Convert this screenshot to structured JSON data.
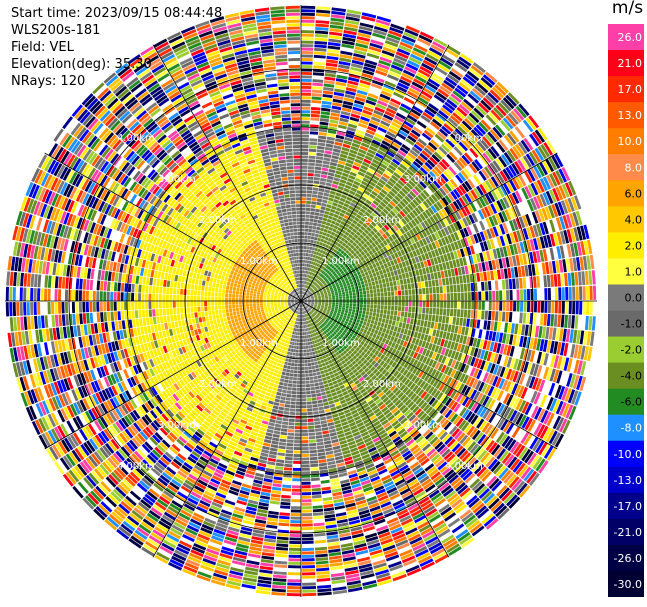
{
  "info": {
    "start_time": "Start time: 2023/09/15 08:44:48",
    "device": "WLS200s-181",
    "field": "Field: VEL",
    "elevation": "Elevation(deg): 35.30",
    "nrays": "NRays: 120"
  },
  "colorbar": {
    "unit": "m/s",
    "levels": [
      "26.0",
      "21.0",
      "17.0",
      "13.0",
      "10.0",
      "8.0",
      "6.0",
      "4.0",
      "2.0",
      "1.0",
      "0.0",
      "-1.0",
      "-2.0",
      "-4.0",
      "-6.0",
      "-8.0",
      "-10.0",
      "-13.0",
      "-17.0",
      "-21.0",
      "-26.0",
      "-30.0"
    ],
    "colors": [
      "#ff3fa8",
      "#ff0018",
      "#ff2a00",
      "#ff5a00",
      "#ff7e00",
      "#ff8a4a",
      "#ffa400",
      "#ffc800",
      "#ffee00",
      "#ffff40",
      "#7a7a7a",
      "#6a6a6a",
      "#9acd32",
      "#6b8e23",
      "#228b22",
      "#1e90ff",
      "#0000ff",
      "#0000cc",
      "#00008b",
      "#000066",
      "#000044",
      "#000033"
    ]
  },
  "chart_data": {
    "type": "heatmap",
    "subtype": "ppi-radial-velocity",
    "unit": "m/s",
    "nrays": 120,
    "range_rings_km": [
      1.0,
      2.0,
      3.0,
      4.0
    ],
    "ring_labels": [
      "1.00km",
      "2.00km",
      "3.00km",
      "4.00km"
    ],
    "field_pattern": {
      "west_sector_value_mps": 2.0,
      "west_core_value_mps": 6.0,
      "east_sector_value_mps": -2.0,
      "east_core_value_mps": -6.0,
      "transition_value_mps": 0.0,
      "outer_noise": true
    },
    "colorbar_range": [
      -30.0,
      26.0
    ]
  }
}
